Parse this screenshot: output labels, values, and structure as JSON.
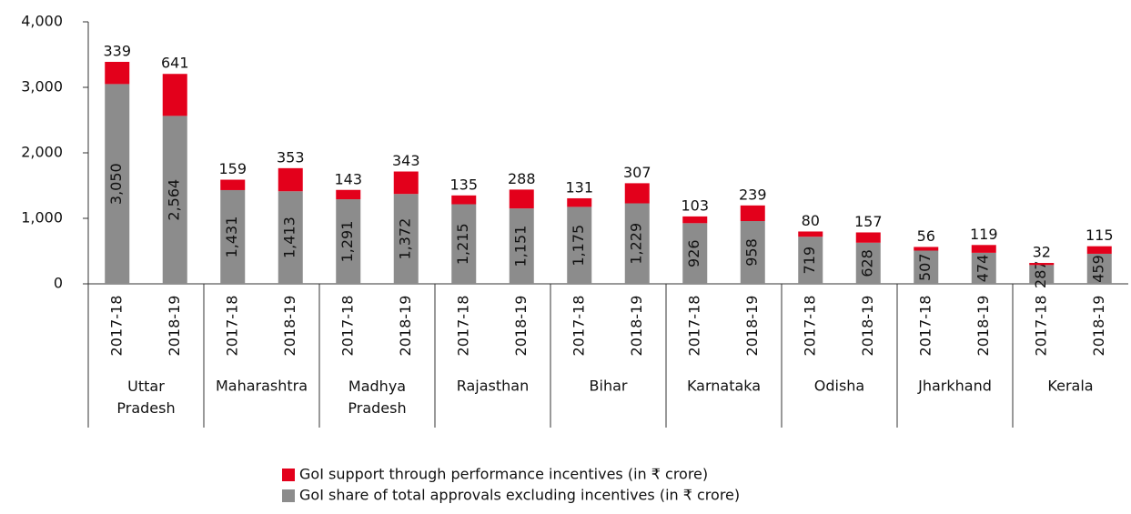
{
  "chart_data": {
    "type": "stacked_bar",
    "categories": [
      "2017-18",
      "2018-19",
      "2017-18",
      "2018-19",
      "2017-18",
      "2018-19",
      "2017-18",
      "2018-19",
      "2017-18",
      "2018-19",
      "2017-18",
      "2018-19",
      "2017-18",
      "2018-19",
      "2017-18",
      "2018-19",
      "2017-18",
      "2018-19"
    ],
    "groups": [
      "Uttar Pradesh",
      "Maharashtra",
      "Madhya Pradesh",
      "Rajasthan",
      "Bihar",
      "Karnataka",
      "Odisha",
      "Jharkhand",
      "Kerala"
    ],
    "series": [
      {
        "name": "GoI support through performance incentives (in ₹ crore)",
        "color": "#e3001b",
        "values": [
          339,
          641,
          159,
          353,
          143,
          343,
          135,
          288,
          131,
          307,
          103,
          239,
          80,
          157,
          56,
          119,
          32,
          115
        ]
      },
      {
        "name": "GoI share of total approvals excluding incentives (in ₹ crore)",
        "color": "#8c8c8c",
        "values": [
          3050,
          2564,
          1431,
          1413,
          1291,
          1372,
          1215,
          1151,
          1175,
          1229,
          926,
          958,
          719,
          628,
          507,
          474,
          287,
          459
        ],
        "value_labels": [
          "3,050",
          "2,564",
          "1,431",
          "1,413",
          "1,291",
          "1,372",
          "1,215",
          "1,151",
          "1,175",
          "1,229",
          "926",
          "958",
          "719",
          "628",
          "507",
          "474",
          "287",
          "459"
        ]
      }
    ],
    "ylim": [
      0,
      4000
    ],
    "yticks": [
      0,
      {
        "value": 1000,
        "label": "1,000"
      },
      {
        "value": 2000,
        "label": "2,000"
      },
      {
        "value": 3000,
        "label": "3,000"
      },
      {
        "value": 4000,
        "label": "4,000"
      }
    ]
  }
}
